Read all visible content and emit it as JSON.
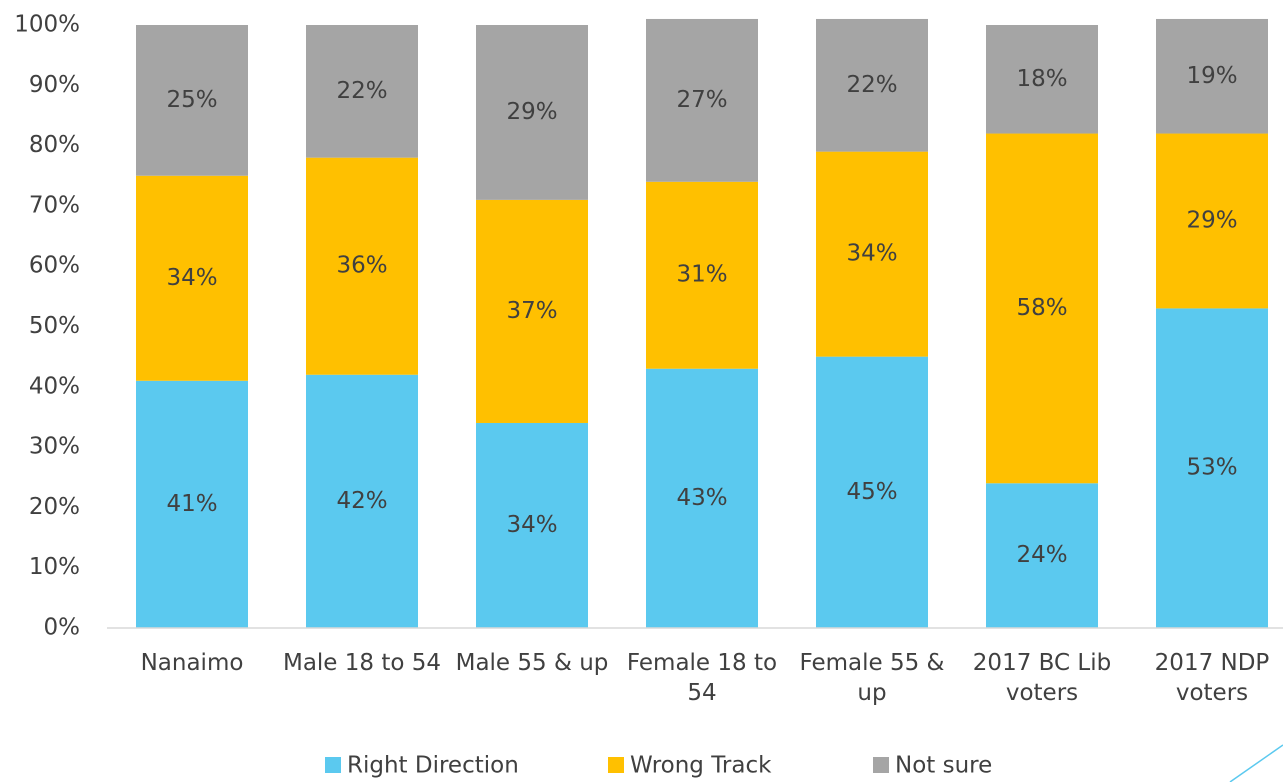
{
  "chart_data": {
    "type": "stacked_bar",
    "categories": [
      "Nanaimo",
      "Male 18 to 54",
      "Male 55 & up",
      "Female 18 to 54",
      "Female 55 & up",
      "2017 BC Lib voters",
      "2017 NDP voters"
    ],
    "series": [
      {
        "name": "Right Direction",
        "color": "#5bc9ef",
        "values": [
          41,
          42,
          34,
          43,
          45,
          24,
          53
        ],
        "value_labels": [
          "41%",
          "42%",
          "34%",
          "43%",
          "45%",
          "24%",
          "53%"
        ]
      },
      {
        "name": "Wrong Track",
        "color": "#ffc000",
        "values": [
          34,
          36,
          37,
          31,
          34,
          58,
          29
        ],
        "value_labels": [
          "34%",
          "36%",
          "37%",
          "31%",
          "34%",
          "58%",
          "29%"
        ]
      },
      {
        "name": "Not sure",
        "color": "#a5a5a5",
        "values": [
          25,
          22,
          29,
          27,
          22,
          18,
          19
        ],
        "value_labels": [
          "25%",
          "22%",
          "29%",
          "27%",
          "22%",
          "18%",
          "19%"
        ]
      }
    ],
    "ylim": [
      0,
      100
    ],
    "yticks": [
      {
        "value": 0,
        "label": "0%"
      },
      {
        "value": 10,
        "label": "10%"
      },
      {
        "value": 20,
        "label": "20%"
      },
      {
        "value": 30,
        "label": "30%"
      },
      {
        "value": 40,
        "label": "40%"
      },
      {
        "value": 50,
        "label": "50%"
      },
      {
        "value": 60,
        "label": "60%"
      },
      {
        "value": 70,
        "label": "70%"
      },
      {
        "value": 80,
        "label": "80%"
      },
      {
        "value": 90,
        "label": "90%"
      },
      {
        "value": 100,
        "label": "100%"
      }
    ],
    "legend": "bottom"
  }
}
